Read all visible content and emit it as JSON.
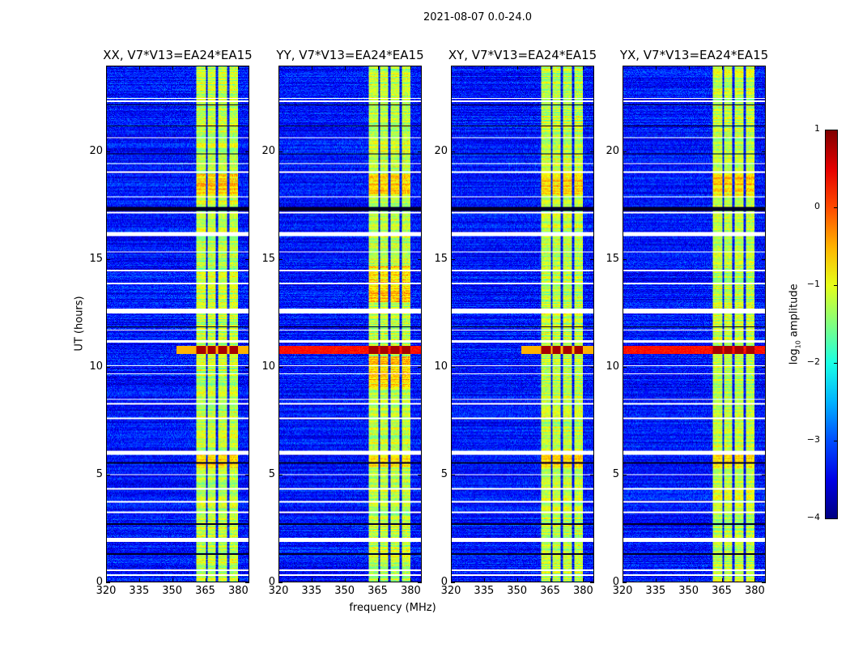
{
  "suptitle": "2021-08-07 0.0-24.0",
  "xlabel": "frequency (MHz)",
  "ylabel": "UT (hours)",
  "colorbar": {
    "label_prefix": "log",
    "label_sub": "10",
    "label_suffix": " amplitude",
    "range": [
      -4,
      1
    ],
    "ticks": [
      1,
      0,
      -1,
      -2,
      -3,
      -4
    ],
    "tick_labels": [
      "1",
      "0",
      "−1",
      "−2",
      "−3",
      "−4"
    ],
    "colormap": "jet"
  },
  "chart_data": [
    {
      "type": "heatmap",
      "title": "XX, V7*V13=EA24*EA15",
      "pol": "XX",
      "xlim": [
        320,
        385
      ],
      "ylim": [
        0,
        24
      ],
      "high_row_broadband": false
    },
    {
      "type": "heatmap",
      "title": "YY, V7*V13=EA24*EA15",
      "pol": "YY",
      "xlim": [
        320,
        385
      ],
      "ylim": [
        0,
        24
      ],
      "high_row_broadband": true
    },
    {
      "type": "heatmap",
      "title": "XY, V7*V13=EA24*EA15",
      "pol": "XY",
      "xlim": [
        320,
        385
      ],
      "ylim": [
        0,
        24
      ],
      "high_row_broadband": false
    },
    {
      "type": "heatmap",
      "title": "YX, V7*V13=EA24*EA15",
      "pol": "YX",
      "xlim": [
        320,
        385
      ],
      "ylim": [
        0,
        24
      ],
      "high_row_broadband": true
    }
  ],
  "axes": {
    "xticks": [
      320,
      335,
      350,
      365,
      380
    ],
    "xtick_labels": [
      "320",
      "335",
      "350",
      "365",
      "380"
    ],
    "yticks": [
      0,
      5,
      10,
      15,
      20
    ],
    "ytick_labels": [
      "0",
      "5",
      "10",
      "15",
      "20"
    ]
  },
  "signal": {
    "background_log_amp": -3.3,
    "band_log_amp": -1.2,
    "band_channels_mhz": [
      [
        361.3,
        365.4
      ],
      [
        366.1,
        370.1
      ],
      [
        371.2,
        375.2
      ],
      [
        376.3,
        380.4
      ]
    ],
    "strong_rfi_hours": [
      10.6,
      11.0
    ],
    "strong_rfi_log_amp": 0.8,
    "flagged_hours": [
      [
        0.25,
        0.32
      ],
      [
        0.5,
        0.56
      ],
      [
        1.85,
        2.05
      ],
      [
        3.2,
        3.26
      ],
      [
        3.7,
        3.76
      ],
      [
        4.3,
        4.35
      ],
      [
        4.95,
        5.02
      ],
      [
        5.9,
        6.1
      ],
      [
        7.55,
        7.62
      ],
      [
        8.25,
        8.3
      ],
      [
        8.45,
        8.5
      ],
      [
        9.65,
        9.7
      ],
      [
        10.05,
        10.1
      ],
      [
        11.15,
        11.25
      ],
      [
        11.7,
        11.75
      ],
      [
        12.5,
        12.72
      ],
      [
        13.85,
        13.9
      ],
      [
        14.45,
        14.52
      ],
      [
        15.35,
        15.4
      ],
      [
        16.1,
        16.3
      ],
      [
        17.15,
        17.22
      ],
      [
        17.9,
        17.96
      ],
      [
        19.05,
        19.1
      ],
      [
        19.45,
        19.5
      ],
      [
        20.65,
        20.7
      ],
      [
        22.35,
        22.42
      ],
      [
        22.48,
        22.55
      ]
    ],
    "dark_hours": [
      [
        1.25,
        1.3
      ],
      [
        2.65,
        2.7
      ],
      [
        5.5,
        5.55
      ],
      [
        11.85,
        11.9
      ],
      [
        17.25,
        17.45
      ],
      [
        19.9,
        19.95
      ],
      [
        21.2,
        21.25
      ],
      [
        22.2,
        22.25
      ]
    ]
  }
}
